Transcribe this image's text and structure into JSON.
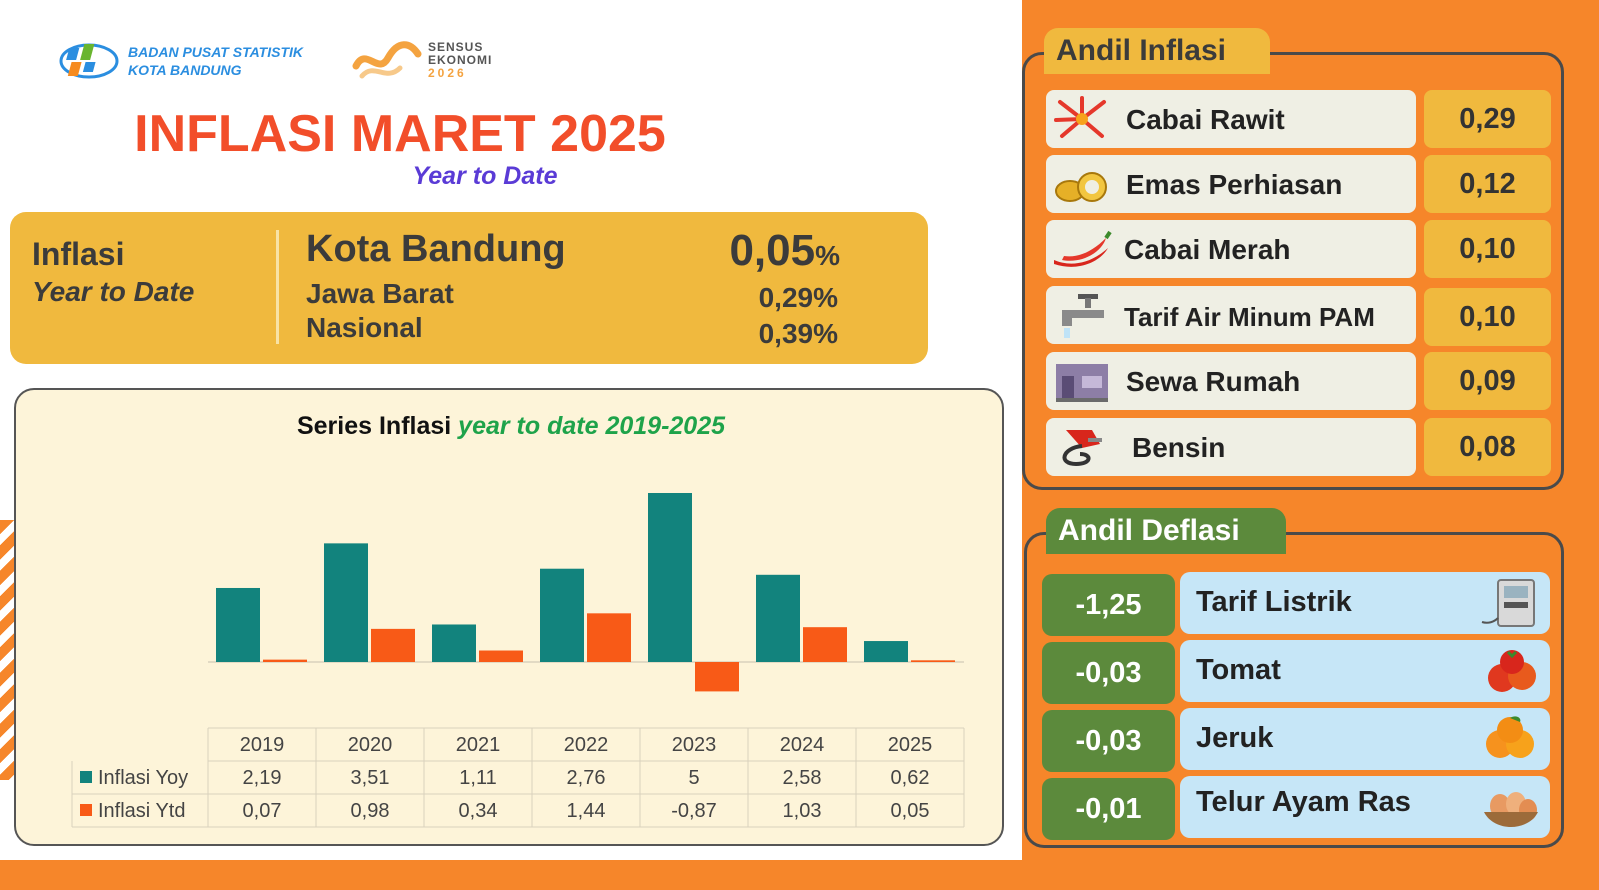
{
  "header": {
    "org_line1": "BADAN PUSAT STATISTIK",
    "org_line2": "KOTA BANDUNG",
    "sensus_line1": "SENSUS",
    "sensus_line2": "EKONOMI",
    "sensus_year": "2026",
    "title": "INFLASI MARET 2025",
    "subtitle": "Year to Date"
  },
  "summary": {
    "label_line1": "Inflasi",
    "label_line2": "Year to Date",
    "rows": [
      {
        "region": "Kota Bandung",
        "value": "0,05",
        "unit": "%"
      },
      {
        "region": "Jawa Barat",
        "value": "0,29%"
      },
      {
        "region": "Nasional",
        "value": "0,39%"
      }
    ]
  },
  "chart_data": {
    "type": "bar",
    "title": "Series Inflasi",
    "title_highlight": "year to date 2019-2025",
    "categories": [
      "2019",
      "2020",
      "2021",
      "2022",
      "2023",
      "2024",
      "2025"
    ],
    "series": [
      {
        "name": "Inflasi Yoy",
        "color": "#12837d",
        "values": [
          2.19,
          3.51,
          1.11,
          2.76,
          5,
          2.58,
          0.62
        ],
        "labels": [
          "2,19",
          "3,51",
          "1,11",
          "2,76",
          "5",
          "2,58",
          "0,62"
        ]
      },
      {
        "name": "Inflasi Ytd",
        "color": "#f85a17",
        "values": [
          0.07,
          0.98,
          0.34,
          1.44,
          -0.87,
          1.03,
          0.05
        ],
        "labels": [
          "0,07",
          "0,98",
          "0,34",
          "1,44",
          "-0,87",
          "1,03",
          "0,05"
        ]
      }
    ],
    "ylim": [
      -0.9,
      5
    ],
    "legend": "data-table-below"
  },
  "andil_inflasi": {
    "title": "Andil Inflasi",
    "items": [
      {
        "name": "Cabai Rawit",
        "value": "0,29",
        "icon": "chili-icon"
      },
      {
        "name": "Emas Perhiasan",
        "value": "0,12",
        "icon": "gold-jewelry-icon"
      },
      {
        "name": "Cabai Merah",
        "value": "0,10",
        "icon": "red-chili-icon"
      },
      {
        "name": "Tarif Air Minum PAM",
        "value": "0,10",
        "icon": "water-tap-icon"
      },
      {
        "name": "Sewa Rumah",
        "value": "0,09",
        "icon": "house-icon"
      },
      {
        "name": "Bensin",
        "value": "0,08",
        "icon": "fuel-nozzle-icon"
      }
    ]
  },
  "andil_deflasi": {
    "title": "Andil Deflasi",
    "items": [
      {
        "name": "Tarif Listrik",
        "value": "-1,25",
        "icon": "electric-meter-icon"
      },
      {
        "name": "Tomat",
        "value": "-0,03",
        "icon": "tomato-icon"
      },
      {
        "name": "Jeruk",
        "value": "-0,03",
        "icon": "orange-fruit-icon"
      },
      {
        "name": "Telur Ayam Ras",
        "value": "-0,01",
        "icon": "eggs-icon"
      }
    ]
  },
  "colors": {
    "accent_orange": "#f6862a",
    "title_red": "#f24e2a",
    "summary_gold": "#f0b93e",
    "deflasi_green": "#5c8a3c",
    "deflasi_blue": "#c6e6f7",
    "subtitle_purple": "#5a3bd6"
  }
}
